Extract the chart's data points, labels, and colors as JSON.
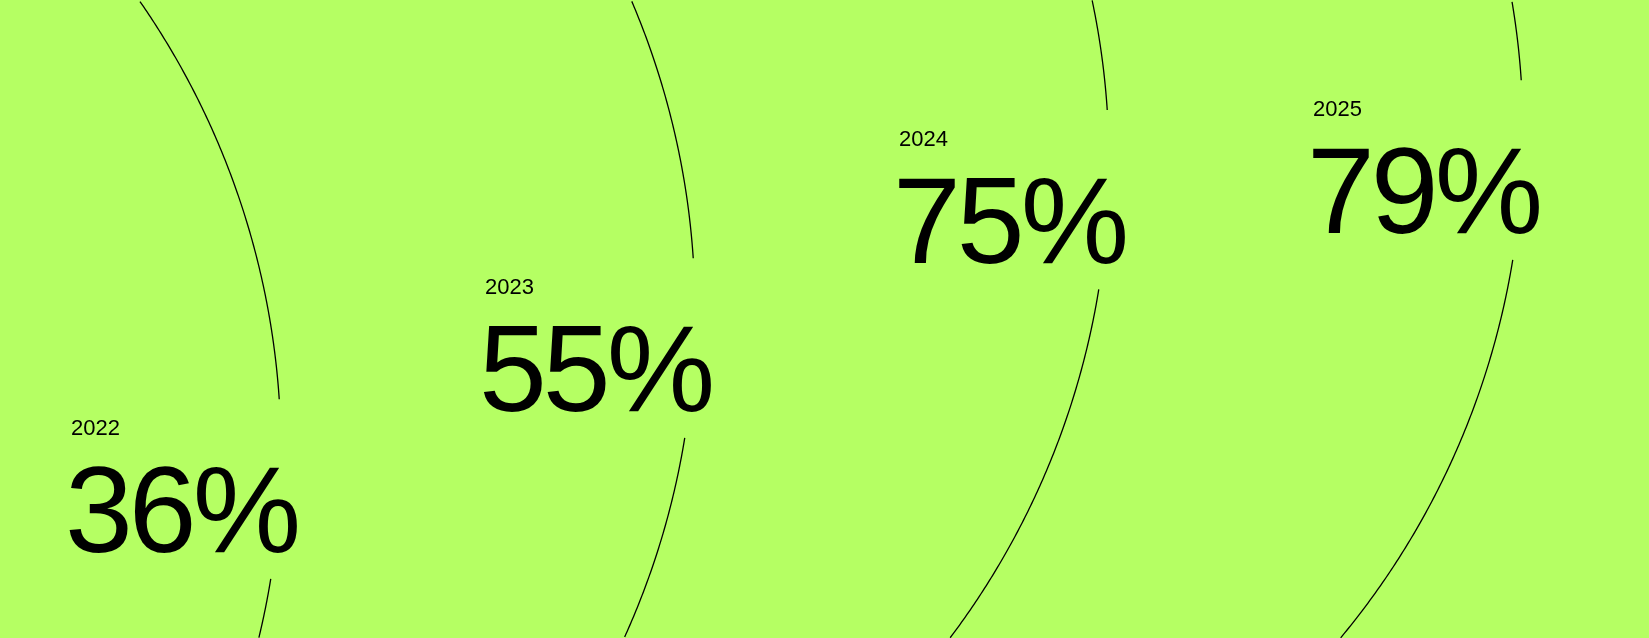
{
  "chart_data": {
    "type": "other",
    "categories": [
      "2022",
      "2023",
      "2024",
      "2025"
    ],
    "values": [
      36,
      55,
      75,
      79
    ],
    "value_labels": [
      "36%",
      "55%",
      "75%",
      "79%"
    ],
    "color": "#b5ff63"
  }
}
